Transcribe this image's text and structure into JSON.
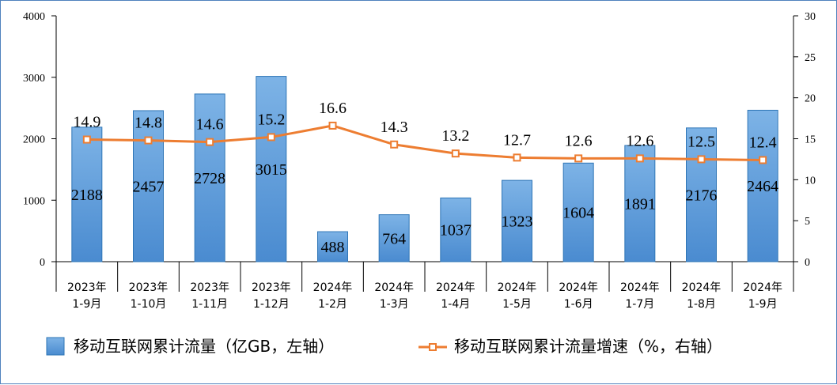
{
  "chart_data": {
    "type": "bar+line",
    "categories": [
      [
        "2023年",
        "1-9月"
      ],
      [
        "2023年",
        "1-10月"
      ],
      [
        "2023年",
        "1-11月"
      ],
      [
        "2023年",
        "1-12月"
      ],
      [
        "2024年",
        "1-2月"
      ],
      [
        "2024年",
        "1-3月"
      ],
      [
        "2024年",
        "1-4月"
      ],
      [
        "2024年",
        "1-5月"
      ],
      [
        "2024年",
        "1-6月"
      ],
      [
        "2024年",
        "1-7月"
      ],
      [
        "2024年",
        "1-8月"
      ],
      [
        "2024年",
        "1-9月"
      ]
    ],
    "series": [
      {
        "name": "移动互联网累计流量（亿GB，左轴）",
        "type": "bar",
        "axis": "left",
        "values": [
          2188,
          2457,
          2728,
          3015,
          488,
          764,
          1037,
          1323,
          1604,
          1891,
          2176,
          2464
        ],
        "color": "#5b9bd5"
      },
      {
        "name": "移动互联网累计流量增速（%，右轴）",
        "type": "line",
        "axis": "right",
        "values": [
          14.9,
          14.8,
          14.6,
          15.2,
          16.6,
          14.3,
          13.2,
          12.7,
          12.6,
          12.6,
          12.5,
          12.4
        ],
        "color": "#ed7d31"
      }
    ],
    "y_left": {
      "min": 0,
      "max": 4000,
      "ticks": [
        0,
        1000,
        2000,
        3000,
        4000
      ]
    },
    "y_right": {
      "min": 0,
      "max": 30,
      "ticks": [
        0,
        5,
        10,
        15,
        20,
        25,
        30
      ]
    },
    "legend_position": "bottom",
    "grid": false
  }
}
